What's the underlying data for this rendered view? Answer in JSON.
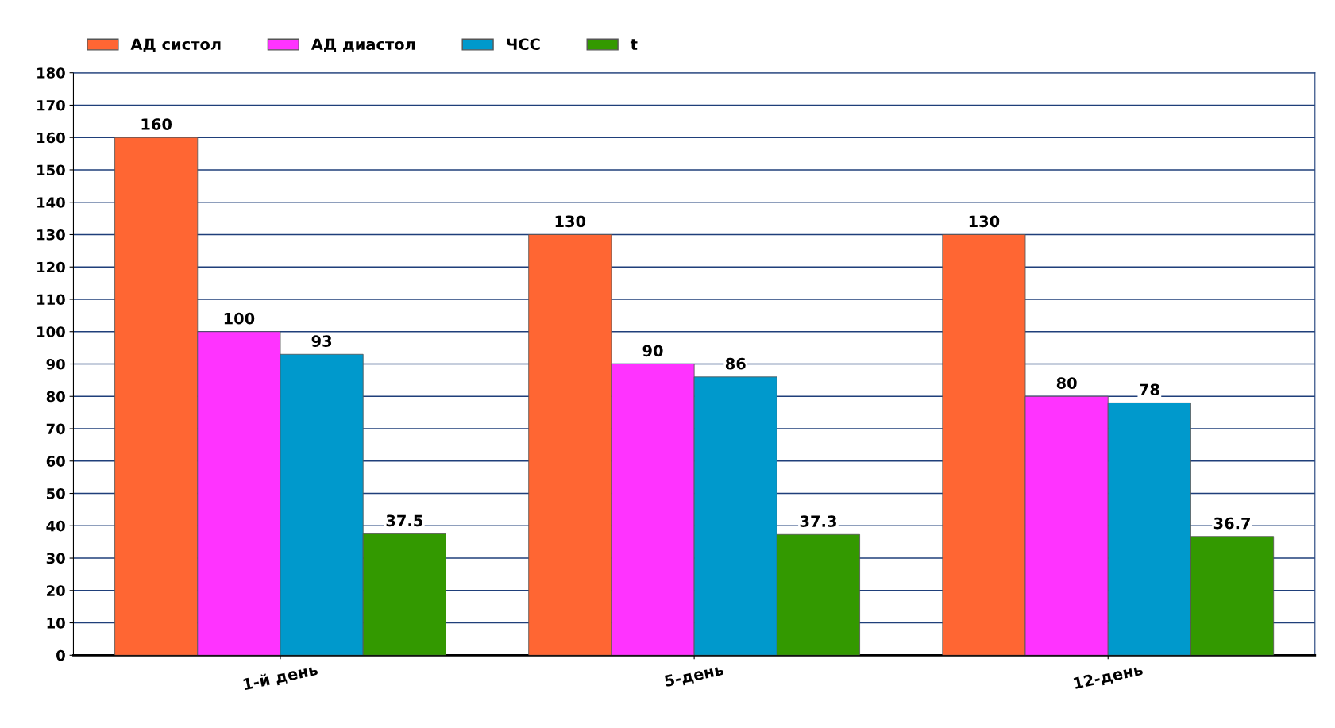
{
  "chart_data": {
    "type": "bar",
    "categories": [
      "1-й день",
      "5-день",
      "12-день"
    ],
    "series": [
      {
        "name": "АД систол",
        "color": "#ff6633",
        "values": [
          160,
          130,
          130
        ]
      },
      {
        "name": "АД диастол",
        "color": "#ff33ff",
        "values": [
          100,
          90,
          80
        ]
      },
      {
        "name": "ЧСС",
        "color": "#0099cc",
        "values": [
          93,
          86,
          78
        ]
      },
      {
        "name": "t",
        "color": "#339900",
        "values": [
          37.5,
          37.3,
          36.7
        ]
      }
    ],
    "ylim": [
      0,
      180
    ],
    "yticks": [
      0,
      10,
      20,
      30,
      40,
      50,
      60,
      70,
      80,
      90,
      100,
      110,
      120,
      130,
      140,
      150,
      160,
      170,
      180
    ],
    "grid": "y",
    "legend": "top left",
    "data_labels": true
  }
}
